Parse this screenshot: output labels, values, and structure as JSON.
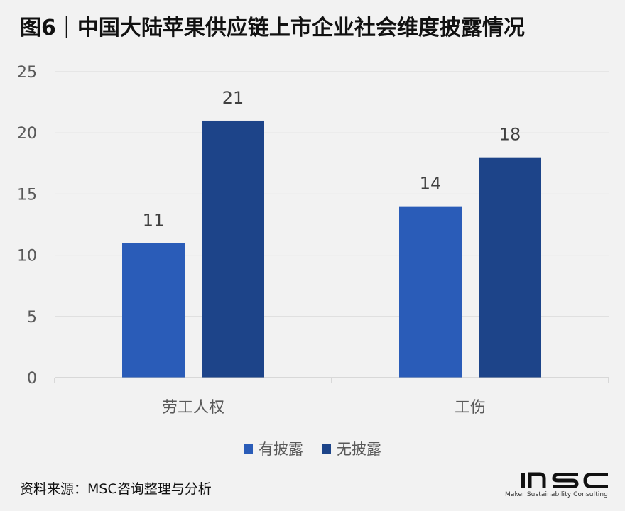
{
  "title": "图6｜中国大陆苹果供应链上市企业社会维度披露情况",
  "source": "资料来源：MSC咨询整理与分析",
  "logo": {
    "text": "MSC",
    "tagline": "Maker Sustainability Consulting"
  },
  "chart_data": {
    "type": "bar",
    "categories": [
      "劳工人权",
      "工伤"
    ],
    "series": [
      {
        "name": "有披露",
        "values": [
          11,
          14
        ],
        "color": "#2a5cb8"
      },
      {
        "name": "无披露",
        "values": [
          21,
          18
        ],
        "color": "#1d4489"
      }
    ],
    "ylim": [
      0,
      25
    ],
    "yticks": [
      0,
      5,
      10,
      15,
      20,
      25
    ],
    "grid": true,
    "legend": "bottom",
    "xlabel": "",
    "ylabel": ""
  }
}
